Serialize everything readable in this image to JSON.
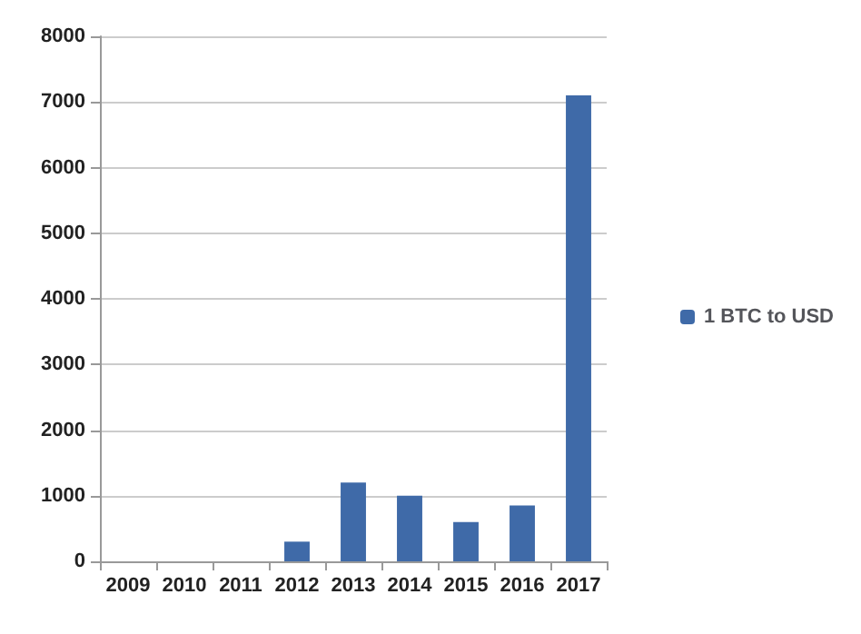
{
  "chart_data": {
    "type": "bar",
    "categories": [
      "2009",
      "2010",
      "2011",
      "2012",
      "2013",
      "2014",
      "2015",
      "2016",
      "2017"
    ],
    "series": [
      {
        "name": "1 BTC to USD",
        "color": "#3f6aa8",
        "values": [
          0,
          0,
          0,
          300,
          1200,
          1000,
          600,
          850,
          7100
        ]
      }
    ],
    "ylim": [
      0,
      8000
    ],
    "yticks": [
      0,
      1000,
      2000,
      3000,
      4000,
      5000,
      6000,
      7000,
      8000
    ],
    "grid": "y",
    "legend": "right"
  }
}
